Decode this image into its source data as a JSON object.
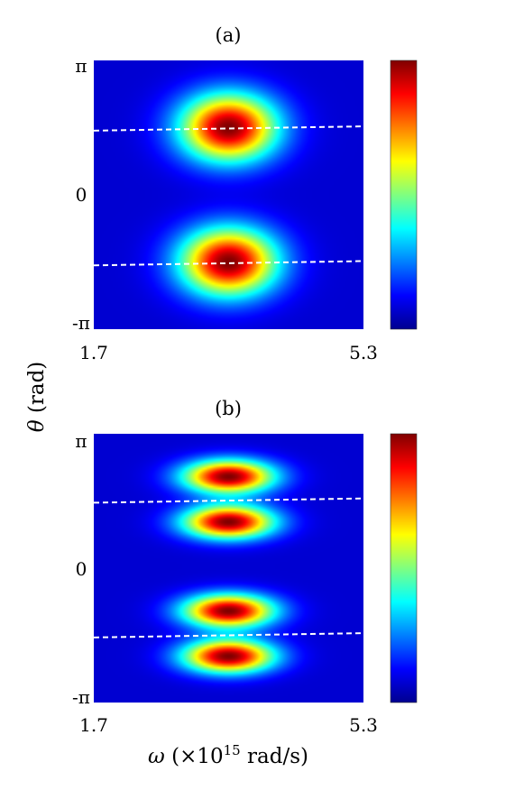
{
  "chart_data": [
    {
      "type": "heatmap",
      "title": "(a)",
      "xlabel": "",
      "ylabel": "",
      "xlim": [
        1.7,
        5.3
      ],
      "ylim": [
        -3.14159,
        3.14159
      ],
      "x_ticks": [
        "1.7",
        "5.3"
      ],
      "y_ticks": [
        "π",
        "0",
        "-π"
      ],
      "colormap": "jet",
      "colorbar": true,
      "peaks": [
        {
          "omega": 3.5,
          "theta": 1.57,
          "sigma_omega": 0.45,
          "sigma_theta": 0.55,
          "amplitude": 1.0
        },
        {
          "omega": 3.5,
          "theta": -1.57,
          "sigma_omega": 0.45,
          "sigma_theta": 0.55,
          "amplitude": 1.0
        }
      ],
      "dashed_lines": [
        {
          "x": [
            1.7,
            5.3
          ],
          "y": [
            1.5,
            1.6
          ]
        },
        {
          "x": [
            1.7,
            5.3
          ],
          "y": [
            -1.65,
            -1.55
          ]
        }
      ]
    },
    {
      "type": "heatmap",
      "title": "(b)",
      "xlabel": "",
      "ylabel": "",
      "xlim": [
        1.7,
        5.3
      ],
      "ylim": [
        -3.14159,
        3.14159
      ],
      "x_ticks": [
        "1.7",
        "5.3"
      ],
      "y_ticks": [
        "π",
        "0",
        "-π"
      ],
      "colormap": "jet",
      "colorbar": true,
      "peaks": [
        {
          "omega": 3.5,
          "theta": 2.14,
          "sigma_omega": 0.42,
          "sigma_theta": 0.27,
          "amplitude": 1.0
        },
        {
          "omega": 3.5,
          "theta": 1.08,
          "sigma_omega": 0.42,
          "sigma_theta": 0.27,
          "amplitude": 1.0
        },
        {
          "omega": 3.5,
          "theta": -1.0,
          "sigma_omega": 0.42,
          "sigma_theta": 0.27,
          "amplitude": 1.0
        },
        {
          "omega": 3.5,
          "theta": -2.06,
          "sigma_omega": 0.42,
          "sigma_theta": 0.27,
          "amplitude": 1.0
        }
      ],
      "dashed_lines": [
        {
          "x": [
            1.7,
            5.3
          ],
          "y": [
            1.53,
            1.63
          ]
        },
        {
          "x": [
            1.7,
            5.3
          ],
          "y": [
            -1.62,
            -1.52
          ]
        }
      ]
    }
  ],
  "shared": {
    "ylabel_symbol": "θ",
    "ylabel_unit": " (rad)",
    "xlabel_symbol": "ω",
    "xlabel_prefix": " (×10",
    "xlabel_exp": "15",
    "xlabel_suffix": " rad/s)"
  },
  "colors": {
    "dashed_line": "#ffffff",
    "background_low": "#00008f"
  }
}
